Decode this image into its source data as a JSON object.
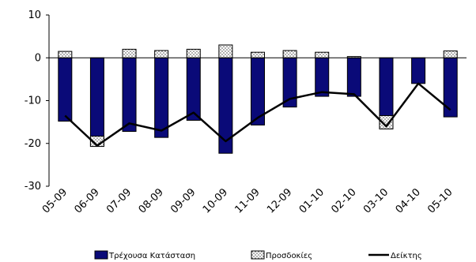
{
  "chart_data": {
    "type": "bar",
    "categories": [
      "05-09",
      "06-09",
      "07-09",
      "08-09",
      "09-09",
      "10-09",
      "11-09",
      "12-09",
      "01-10",
      "02-10",
      "03-10",
      "04-10",
      "05-10"
    ],
    "y_ticks": [
      "10",
      "0",
      "-10",
      "-20",
      "-30"
    ],
    "ylim": [
      -30,
      10
    ],
    "grid": false,
    "legend_position": "bottom",
    "series": [
      {
        "name": "Τρέχουσα Κατάσταση",
        "render": "bar",
        "color": "#0a0a78",
        "values": [
          -14.8,
          -20.7,
          -17.2,
          -18.6,
          -14.6,
          -22.3,
          -15.7,
          -11.5,
          -9.0,
          -9.0,
          -16.6,
          -6.0,
          -13.8
        ]
      },
      {
        "name": "Προσδοκίες",
        "render": "bar-pattern",
        "color": "#ffffff",
        "values": [
          1.5,
          -18.3,
          2.0,
          1.7,
          2.0,
          3.0,
          1.3,
          1.7,
          1.3,
          0.3,
          -13.5,
          0.0,
          1.6
        ]
      },
      {
        "name": "Δείκτης",
        "render": "line",
        "color": "#000000",
        "values": [
          -13.5,
          -20.5,
          -15.3,
          -17.0,
          -12.8,
          -19.5,
          -14.0,
          -9.6,
          -8.0,
          -8.5,
          -16.0,
          -6.0,
          -12.2
        ]
      }
    ]
  }
}
